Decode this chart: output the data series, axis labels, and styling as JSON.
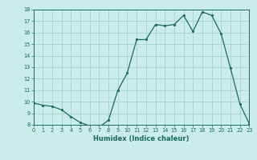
{
  "x": [
    0,
    1,
    2,
    3,
    4,
    5,
    6,
    7,
    8,
    9,
    10,
    11,
    12,
    13,
    14,
    15,
    16,
    17,
    18,
    19,
    20,
    21,
    22,
    23
  ],
  "y": [
    9.9,
    9.7,
    9.6,
    9.3,
    8.7,
    8.2,
    7.9,
    7.8,
    8.4,
    11.0,
    12.5,
    15.4,
    15.4,
    16.7,
    16.6,
    16.7,
    17.5,
    16.1,
    17.8,
    17.5,
    15.9,
    12.9,
    9.8,
    8.1
  ],
  "xlabel": "Humidex (Indice chaleur)",
  "bg_color": "#caecea",
  "grid_color": "#9ecfca",
  "line_color": "#1a6b5a",
  "marker_color": "#1a6b5a",
  "ylim": [
    8,
    18
  ],
  "xlim": [
    0,
    23
  ],
  "yticks": [
    8,
    9,
    10,
    11,
    12,
    13,
    14,
    15,
    16,
    17,
    18
  ],
  "xticks": [
    0,
    1,
    2,
    3,
    4,
    5,
    6,
    7,
    8,
    9,
    10,
    11,
    12,
    13,
    14,
    15,
    16,
    17,
    18,
    19,
    20,
    21,
    22,
    23
  ]
}
